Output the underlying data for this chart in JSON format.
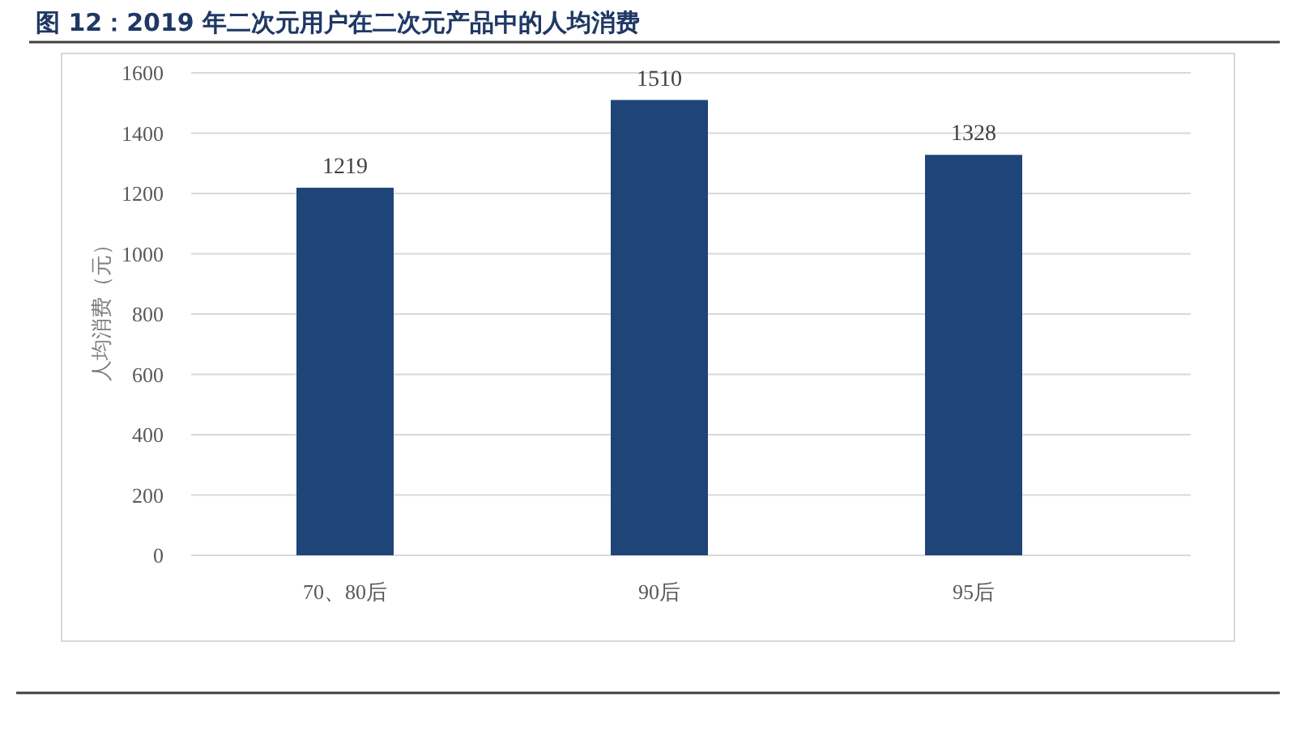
{
  "chart_data": {
    "type": "bar",
    "title": "图 12：2019 年二次元用户在二次元产品中的人均消费",
    "ylabel": "人均消费（元）",
    "categories": [
      "70、80后",
      "90后",
      "95后"
    ],
    "values": [
      1219,
      1510,
      1328
    ],
    "color": "#1e4478",
    "ylim": [
      0,
      1600
    ],
    "yticks": [
      0,
      200,
      400,
      600,
      800,
      1000,
      1200,
      1400,
      1600
    ],
    "grid": "y",
    "data_labels": true
  }
}
